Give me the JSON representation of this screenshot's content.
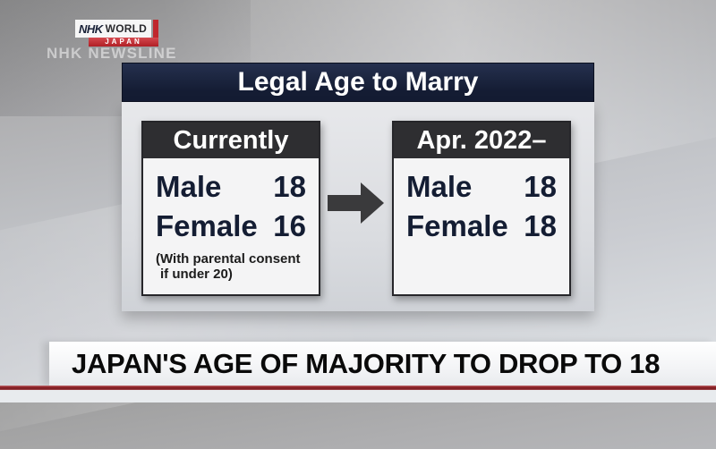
{
  "branding": {
    "logo_nhk": "NHK",
    "logo_world": "WORLD",
    "logo_japan": "JAPAN",
    "program": "NHK NEWSLINE"
  },
  "infographic": {
    "title": "Legal Age to Marry",
    "before": {
      "header": "Currently",
      "rows": [
        {
          "label": "Male",
          "value": "18"
        },
        {
          "label": "Female",
          "value": "16"
        }
      ],
      "note_line1": "(With parental consent",
      "note_line2": "if under 20)"
    },
    "after": {
      "header": "Apr. 2022–",
      "rows": [
        {
          "label": "Male",
          "value": "18"
        },
        {
          "label": "Female",
          "value": "18"
        }
      ]
    }
  },
  "ticker": {
    "headline": "JAPAN'S AGE OF MAJORITY TO DROP TO 18"
  },
  "colors": {
    "brand_red": "#c0272d",
    "title_navy": "#161f38",
    "box_header_dark": "#2e2e31",
    "value_navy": "#141d33",
    "ticker_line_red": "#8e2328"
  }
}
